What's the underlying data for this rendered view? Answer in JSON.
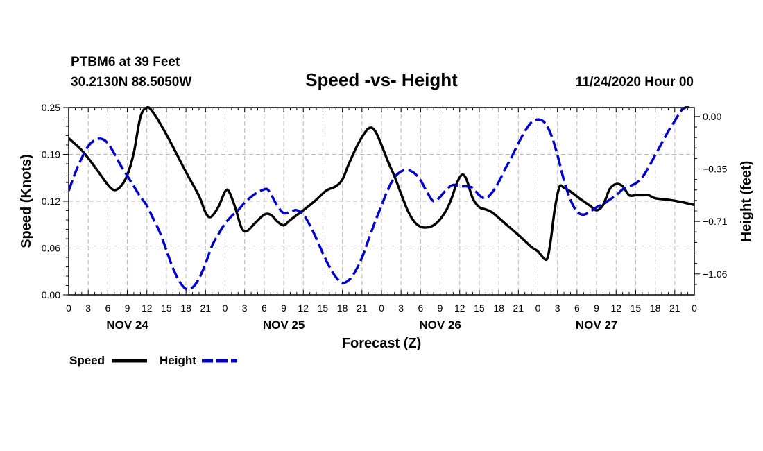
{
  "header": {
    "station": "PTBM6 at 39 Feet",
    "location": "30.2130N 88.5050W",
    "run": "11/24/2020 Hour 00"
  },
  "chart_data": {
    "type": "line",
    "title": "Speed -vs- Height",
    "xlabel": "Forecast (Z)",
    "ylabel_left": "Speed (Knots)",
    "ylabel_right": "Height (feet)",
    "x_unit": "forecast hours from 11/24/2020 00Z",
    "xlim": [
      0,
      96
    ],
    "ylim_left": [
      0,
      0.25
    ],
    "ylim_right": [
      -1.2,
      0.06
    ],
    "yticks_left": [
      "0.00",
      "0.06",
      "0.12",
      "0.19",
      "0.25"
    ],
    "yticks_left_values": [
      0,
      0.0625,
      0.125,
      0.1875,
      0.25
    ],
    "yticks_right": [
      "0.00",
      "−0.35",
      "−0.71",
      "−1.06"
    ],
    "yticks_right_values": [
      0,
      -0.353,
      -0.706,
      -1.059
    ],
    "x_tick_labels": [
      "0",
      "3",
      "6",
      "9",
      "12",
      "15",
      "18",
      "21",
      "0",
      "3",
      "6",
      "9",
      "12",
      "15",
      "18",
      "21",
      "0",
      "3",
      "6",
      "9",
      "12",
      "15",
      "18",
      "21",
      "0",
      "3",
      "6",
      "9",
      "12",
      "15",
      "18",
      "21",
      "0"
    ],
    "day_labels": [
      {
        "label": "NOV 24",
        "hour": 9
      },
      {
        "label": "NOV 25",
        "hour": 33
      },
      {
        "label": "NOV 26",
        "hour": 57
      },
      {
        "label": "NOV 27",
        "hour": 81
      }
    ],
    "grid": true,
    "legend_position": "bottom-left",
    "series": [
      {
        "name": "Speed",
        "axis": "left",
        "color": "#000000",
        "style": "solid",
        "points": [
          [
            0,
            0.209
          ],
          [
            2,
            0.193
          ],
          [
            4,
            0.171
          ],
          [
            6,
            0.147
          ],
          [
            7,
            0.14
          ],
          [
            8,
            0.145
          ],
          [
            9,
            0.16
          ],
          [
            10,
            0.19
          ],
          [
            11,
            0.237
          ],
          [
            12,
            0.25
          ],
          [
            13,
            0.243
          ],
          [
            15,
            0.214
          ],
          [
            18,
            0.164
          ],
          [
            20,
            0.132
          ],
          [
            21,
            0.11
          ],
          [
            21.8,
            0.104
          ],
          [
            23,
            0.118
          ],
          [
            24,
            0.138
          ],
          [
            24.6,
            0.138
          ],
          [
            25.5,
            0.118
          ],
          [
            26.5,
            0.09
          ],
          [
            27.3,
            0.085
          ],
          [
            28.5,
            0.095
          ],
          [
            30,
            0.107
          ],
          [
            31,
            0.107
          ],
          [
            32,
            0.098
          ],
          [
            33,
            0.093
          ],
          [
            34,
            0.1
          ],
          [
            36,
            0.113
          ],
          [
            38,
            0.127
          ],
          [
            39.5,
            0.139
          ],
          [
            41,
            0.145
          ],
          [
            42,
            0.154
          ],
          [
            43,
            0.175
          ],
          [
            44.5,
            0.203
          ],
          [
            46,
            0.222
          ],
          [
            47,
            0.219
          ],
          [
            48,
            0.2
          ],
          [
            49,
            0.178
          ],
          [
            50,
            0.158
          ],
          [
            51,
            0.135
          ],
          [
            52,
            0.113
          ],
          [
            53,
            0.098
          ],
          [
            54,
            0.091
          ],
          [
            55,
            0.09
          ],
          [
            56,
            0.093
          ],
          [
            57,
            0.101
          ],
          [
            58,
            0.114
          ],
          [
            58.8,
            0.13
          ],
          [
            59.5,
            0.148
          ],
          [
            60.3,
            0.16
          ],
          [
            61,
            0.155
          ],
          [
            62,
            0.129
          ],
          [
            63,
            0.117
          ],
          [
            64,
            0.114
          ],
          [
            65,
            0.11
          ],
          [
            67,
            0.095
          ],
          [
            69,
            0.08
          ],
          [
            71,
            0.064
          ],
          [
            72,
            0.058
          ],
          [
            73,
            0.048
          ],
          [
            73.5,
            0.05
          ],
          [
            74,
            0.075
          ],
          [
            74.6,
            0.115
          ],
          [
            75.3,
            0.144
          ],
          [
            76,
            0.143
          ],
          [
            77,
            0.138
          ],
          [
            78.5,
            0.128
          ],
          [
            80,
            0.119
          ],
          [
            81,
            0.113
          ],
          [
            82,
            0.12
          ],
          [
            83,
            0.141
          ],
          [
            84,
            0.148
          ],
          [
            85,
            0.145
          ],
          [
            86,
            0.133
          ],
          [
            87,
            0.133
          ],
          [
            88,
            0.133
          ],
          [
            89,
            0.133
          ],
          [
            90,
            0.129
          ],
          [
            92,
            0.127
          ],
          [
            94,
            0.124
          ],
          [
            96,
            0.12
          ]
        ]
      },
      {
        "name": "Height",
        "axis": "right",
        "color": "#0000cc",
        "style": "dashed",
        "points": [
          [
            0,
            -0.5
          ],
          [
            1,
            -0.38
          ],
          [
            2,
            -0.28
          ],
          [
            3,
            -0.2
          ],
          [
            4,
            -0.16
          ],
          [
            5,
            -0.15
          ],
          [
            6,
            -0.18
          ],
          [
            7,
            -0.25
          ],
          [
            8,
            -0.33
          ],
          [
            9,
            -0.4
          ],
          [
            10,
            -0.47
          ],
          [
            11,
            -0.54
          ],
          [
            12,
            -0.6
          ],
          [
            13,
            -0.69
          ],
          [
            14,
            -0.78
          ],
          [
            15,
            -0.9
          ],
          [
            16,
            -1.02
          ],
          [
            17,
            -1.11
          ],
          [
            18,
            -1.16
          ],
          [
            19,
            -1.15
          ],
          [
            20,
            -1.09
          ],
          [
            21,
            -0.99
          ],
          [
            22,
            -0.87
          ],
          [
            23,
            -0.79
          ],
          [
            24,
            -0.72
          ],
          [
            25,
            -0.67
          ],
          [
            26,
            -0.63
          ],
          [
            27,
            -0.58
          ],
          [
            28,
            -0.54
          ],
          [
            29,
            -0.51
          ],
          [
            30,
            -0.49
          ],
          [
            30.5,
            -0.49
          ],
          [
            31,
            -0.52
          ],
          [
            32,
            -0.6
          ],
          [
            33,
            -0.65
          ],
          [
            34,
            -0.64
          ],
          [
            35,
            -0.63
          ],
          [
            36,
            -0.66
          ],
          [
            37,
            -0.73
          ],
          [
            38,
            -0.82
          ],
          [
            39,
            -0.92
          ],
          [
            40,
            -1.01
          ],
          [
            41,
            -1.08
          ],
          [
            42,
            -1.12
          ],
          [
            43,
            -1.1
          ],
          [
            44,
            -1.04
          ],
          [
            45,
            -0.95
          ],
          [
            46,
            -0.83
          ],
          [
            47,
            -0.71
          ],
          [
            48,
            -0.6
          ],
          [
            49,
            -0.49
          ],
          [
            50,
            -0.41
          ],
          [
            51,
            -0.37
          ],
          [
            52,
            -0.36
          ],
          [
            53,
            -0.38
          ],
          [
            54,
            -0.43
          ],
          [
            55,
            -0.51
          ],
          [
            56,
            -0.57
          ],
          [
            57,
            -0.54
          ],
          [
            58,
            -0.49
          ],
          [
            59,
            -0.46
          ],
          [
            60,
            -0.47
          ],
          [
            61,
            -0.47
          ],
          [
            62,
            -0.48
          ],
          [
            63,
            -0.53
          ],
          [
            64,
            -0.55
          ],
          [
            65,
            -0.51
          ],
          [
            66,
            -0.44
          ],
          [
            67,
            -0.35
          ],
          [
            68,
            -0.27
          ],
          [
            69,
            -0.18
          ],
          [
            70,
            -0.1
          ],
          [
            71,
            -0.04
          ],
          [
            72,
            -0.02
          ],
          [
            73,
            -0.04
          ],
          [
            74,
            -0.12
          ],
          [
            75,
            -0.26
          ],
          [
            76,
            -0.43
          ],
          [
            77,
            -0.56
          ],
          [
            78,
            -0.64
          ],
          [
            79,
            -0.66
          ],
          [
            80,
            -0.64
          ],
          [
            81,
            -0.61
          ],
          [
            82,
            -0.59
          ],
          [
            83,
            -0.56
          ],
          [
            84,
            -0.53
          ],
          [
            85,
            -0.49
          ],
          [
            86,
            -0.47
          ],
          [
            87,
            -0.45
          ],
          [
            88,
            -0.41
          ],
          [
            89,
            -0.34
          ],
          [
            90,
            -0.26
          ],
          [
            91,
            -0.18
          ],
          [
            92,
            -0.1
          ],
          [
            93,
            -0.03
          ],
          [
            94,
            0.04
          ],
          [
            95,
            0.07
          ],
          [
            96,
            0.1
          ]
        ]
      }
    ]
  }
}
